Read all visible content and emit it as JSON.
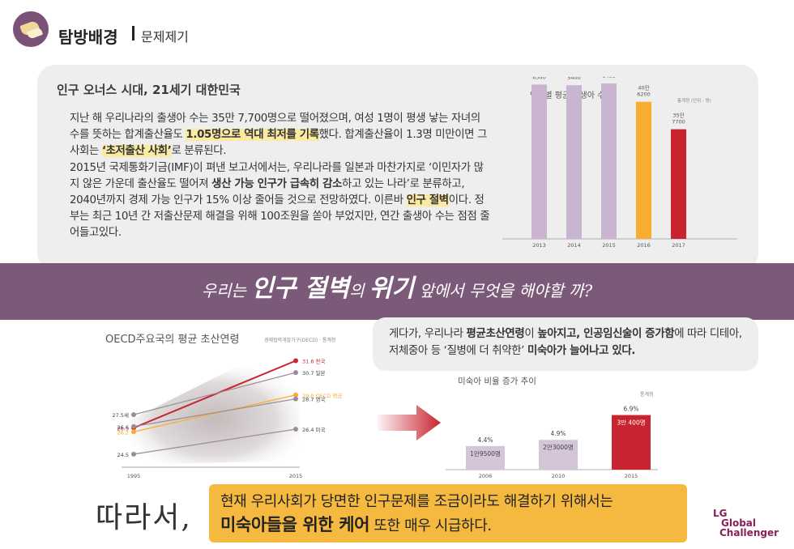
{
  "header": {
    "title": "탐방배경",
    "subtitle": "문제제기"
  },
  "top_section": {
    "heading": "인구 오너스 시대,  21세기 대한민국",
    "p1_a": "지난 해 우리나라의 출생아 수는 35만 7,700명으로 떨어졌으며, 여성 1명이 평생 낳는 자녀의 수를 뜻하는 합계출산율도 ",
    "p1_hl": "1.05명으로 역대 최저를 기록",
    "p1_b": "했다. 합계출산율이 1.3명 미만이면 그 사회는 ",
    "p1_hl2": "‘초저출산 사회’",
    "p1_c": "로 분류된다.",
    "p2_a": "2015년 국제통화기금(IMF)이 펴낸 보고서에서는, 우리나라를 일본과 마찬가지로 ‘이민자가 많지 않은 가운데 출산율도 떨어져 ",
    "p2_bold": "생산 가능 인구가 급속히 감소",
    "p2_b": "하고 있는 나라’로 분류하고, 2040년까지 경제 가능 인구가 15% 이상 줄어들 것으로 전망하였다. 이른바 ",
    "p2_hl": "인구 절벽",
    "p2_c": "이다.  정부는 최근 10년 간 저출산문제 해결을 위해 100조원을 쏟아 부었지만, 연간 출생아 수는 점점 줄어들고있다."
  },
  "banner": {
    "t1": "우리는 ",
    "t2": "인구 절벽",
    "t3": "의 ",
    "t4": "위기",
    "t5": " 앞에서 무엇을 해야할 까?"
  },
  "right_panel": {
    "a": "게다가, 우리나라 ",
    "b": "평균초산연령",
    "c": "이 ",
    "d": "높아지고, 인공임신술이 증가함",
    "e": "에 따라 디테아, 저체중아 등 ‘질병에 더 취약한’ ",
    "f": "미숙아가 늘어나고 있다."
  },
  "conclusion": {
    "lead": "따라서,",
    "line1": "현재 우리사회가 당면한 인구문제를 조금이라도 해결하기 위해서는",
    "strong": "미숙아들을 위한 케어",
    "rest": " 또한 매우 시급하다."
  },
  "brand": {
    "l1": "LG",
    "l2": "Global",
    "l3": "Challenger"
  },
  "chart_data": [
    {
      "type": "bar",
      "title": "연도별 평균 출생아 수",
      "note": "통계청 (단위 : 명)",
      "categories": [
        "2013",
        "2014",
        "2015",
        "2016",
        "2017"
      ],
      "values": [
        436500,
        435400,
        438400,
        406200,
        357700
      ],
      "labels": [
        [
          "43만",
          "6500"
        ],
        [
          "43만",
          "5400"
        ],
        [
          "43만",
          "8400"
        ],
        [
          "40만",
          "6200"
        ],
        [
          "35만",
          "7700"
        ]
      ],
      "colors": [
        "#c9b5cf",
        "#c9b5cf",
        "#c9b5cf",
        "#f7ad2f",
        "#c8242f"
      ],
      "ylim": [
        0,
        500000
      ]
    },
    {
      "type": "line",
      "title": "OECD주요국의 평균 초산연령",
      "note": "경제협력개발기구(OECD) · 통계청",
      "x": [
        "1995",
        "2015"
      ],
      "series": [
        {
          "name": "한국",
          "values": [
            26.5,
            31.6
          ],
          "color": "#c8242f",
          "start_label": "26.5",
          "end_label": "31.6 한국"
        },
        {
          "name": "일본",
          "values": [
            27.5,
            30.7
          ],
          "color": "#9a8d9a",
          "start_label": "27.5세",
          "end_label": "30.7 일본"
        },
        {
          "name": "OECD 평균",
          "values": [
            26.2,
            29.0
          ],
          "color": "#f7ad2f",
          "start_label": "26.2",
          "end_label": "29.0 OECD 평균"
        },
        {
          "name": "영국",
          "values": [
            26.6,
            28.7
          ],
          "color": "#9a8d9a",
          "start_label": "26.6",
          "end_label": "28.7 영국"
        },
        {
          "name": "미국",
          "values": [
            24.5,
            26.4
          ],
          "color": "#9a8d9a",
          "start_label": "24.5",
          "end_label": "26.4 미국"
        }
      ],
      "ylim": [
        24,
        32
      ]
    },
    {
      "type": "bar",
      "title": "미숙아 비율 증가 추이",
      "note": "통계청",
      "categories": [
        "2006",
        "2010",
        "2015"
      ],
      "values": [
        4.4,
        4.9,
        6.9
      ],
      "value_labels": [
        "4.4%",
        "4.9%",
        "6.9%"
      ],
      "inner_labels": [
        "1만9500명",
        "2만3000명",
        "3만 400명"
      ],
      "colors": [
        "#d4c5d8",
        "#d4c5d8",
        "#c8242f"
      ],
      "ylim": [
        0,
        8
      ]
    }
  ]
}
